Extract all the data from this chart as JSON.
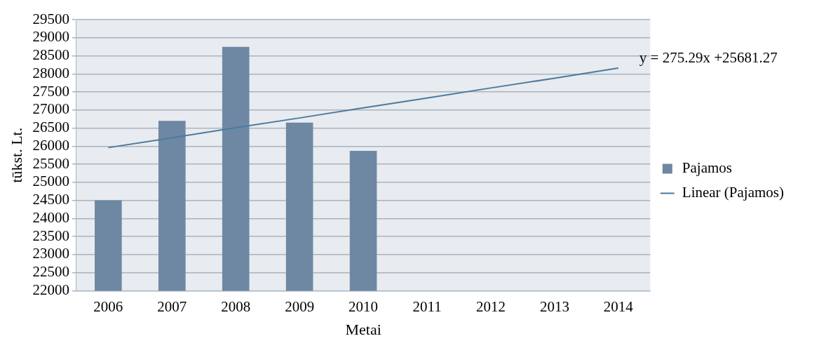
{
  "chart_data": {
    "type": "bar",
    "xlabel": "Metai",
    "ylabel": "tūkst. Lt.",
    "categories": [
      "2006",
      "2007",
      "2008",
      "2009",
      "2010",
      "2011",
      "2012",
      "2013",
      "2014"
    ],
    "series": [
      {
        "name": "Pajamos",
        "color": "#6e88a4",
        "values": [
          24500,
          26700,
          28750,
          26650,
          25870,
          null,
          null,
          null,
          null
        ]
      },
      {
        "name": "Linear (Pajamos)",
        "type": "line",
        "color": "#4a7aa0",
        "values": [
          25960,
          26230,
          26510,
          26780,
          27060,
          27330,
          27610,
          27880,
          28160
        ]
      }
    ],
    "annotations": [
      {
        "text": "y = 275.29x +25681.27",
        "x": "2014",
        "y": 28160
      }
    ],
    "ylim": [
      22000,
      29500
    ],
    "yticks": [
      22000,
      22500,
      23000,
      23500,
      24000,
      24500,
      25000,
      25500,
      26000,
      26500,
      27000,
      27500,
      28000,
      28500,
      29000,
      29500
    ],
    "grid": "y",
    "legend": "right",
    "marker": "none"
  }
}
